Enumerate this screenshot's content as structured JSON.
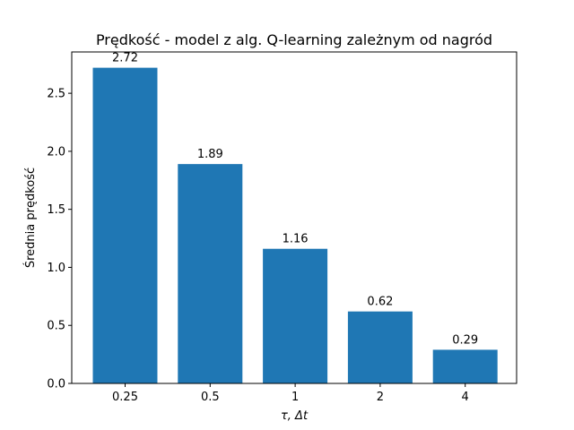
{
  "chart_data": {
    "type": "bar",
    "title": "Prędkość - model z alg. Q-learning zależnym od nagród",
    "xlabel": "τ, Δt",
    "ylabel": "Średnia prędkość",
    "categories": [
      "0.25",
      "0.5",
      "1",
      "2",
      "4"
    ],
    "values": [
      2.72,
      1.89,
      1.16,
      0.62,
      0.29
    ],
    "data_labels": [
      "2.72",
      "1.89",
      "1.16",
      "0.62",
      "0.29"
    ],
    "yticks": [
      "0.0",
      "0.5",
      "1.0",
      "1.5",
      "2.0",
      "2.5"
    ],
    "ylim": [
      0,
      2.856
    ],
    "grid": false,
    "legend": "none",
    "bar_color": "#1f77b4"
  }
}
